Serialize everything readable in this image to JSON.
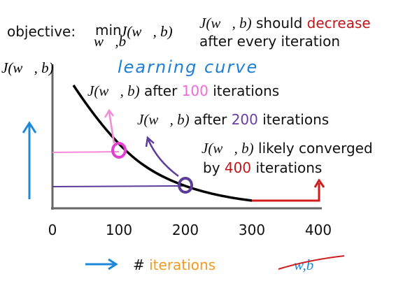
{
  "header": {
    "objective_label": "objective:",
    "min": "min",
    "min_subscript": "w⃗,b",
    "objective": "J(w⃗, b)"
  },
  "note": {
    "function": "J(w⃗, b)",
    "should": "should",
    "decrease": "decrease",
    "rest": "after every iteration"
  },
  "plot": {
    "y_label": "J(w⃗, b)",
    "handwritten_label": "learning curve",
    "x_ticks": [
      "0",
      "100",
      "200",
      "300",
      "400"
    ],
    "x_label_hash": "#",
    "x_label": "iterations",
    "crossed_label": "w,b",
    "annotations": [
      {
        "function": "J(w⃗, b)",
        "before": "after",
        "count": "100",
        "after": "iterations"
      },
      {
        "function": "J(w⃗, b)",
        "before": "after",
        "count": "200",
        "after": "iterations"
      },
      {
        "function": "J(w⃗, b)",
        "before": "likely converged",
        "by": "by",
        "count": "400",
        "after": "iterations"
      }
    ]
  }
}
